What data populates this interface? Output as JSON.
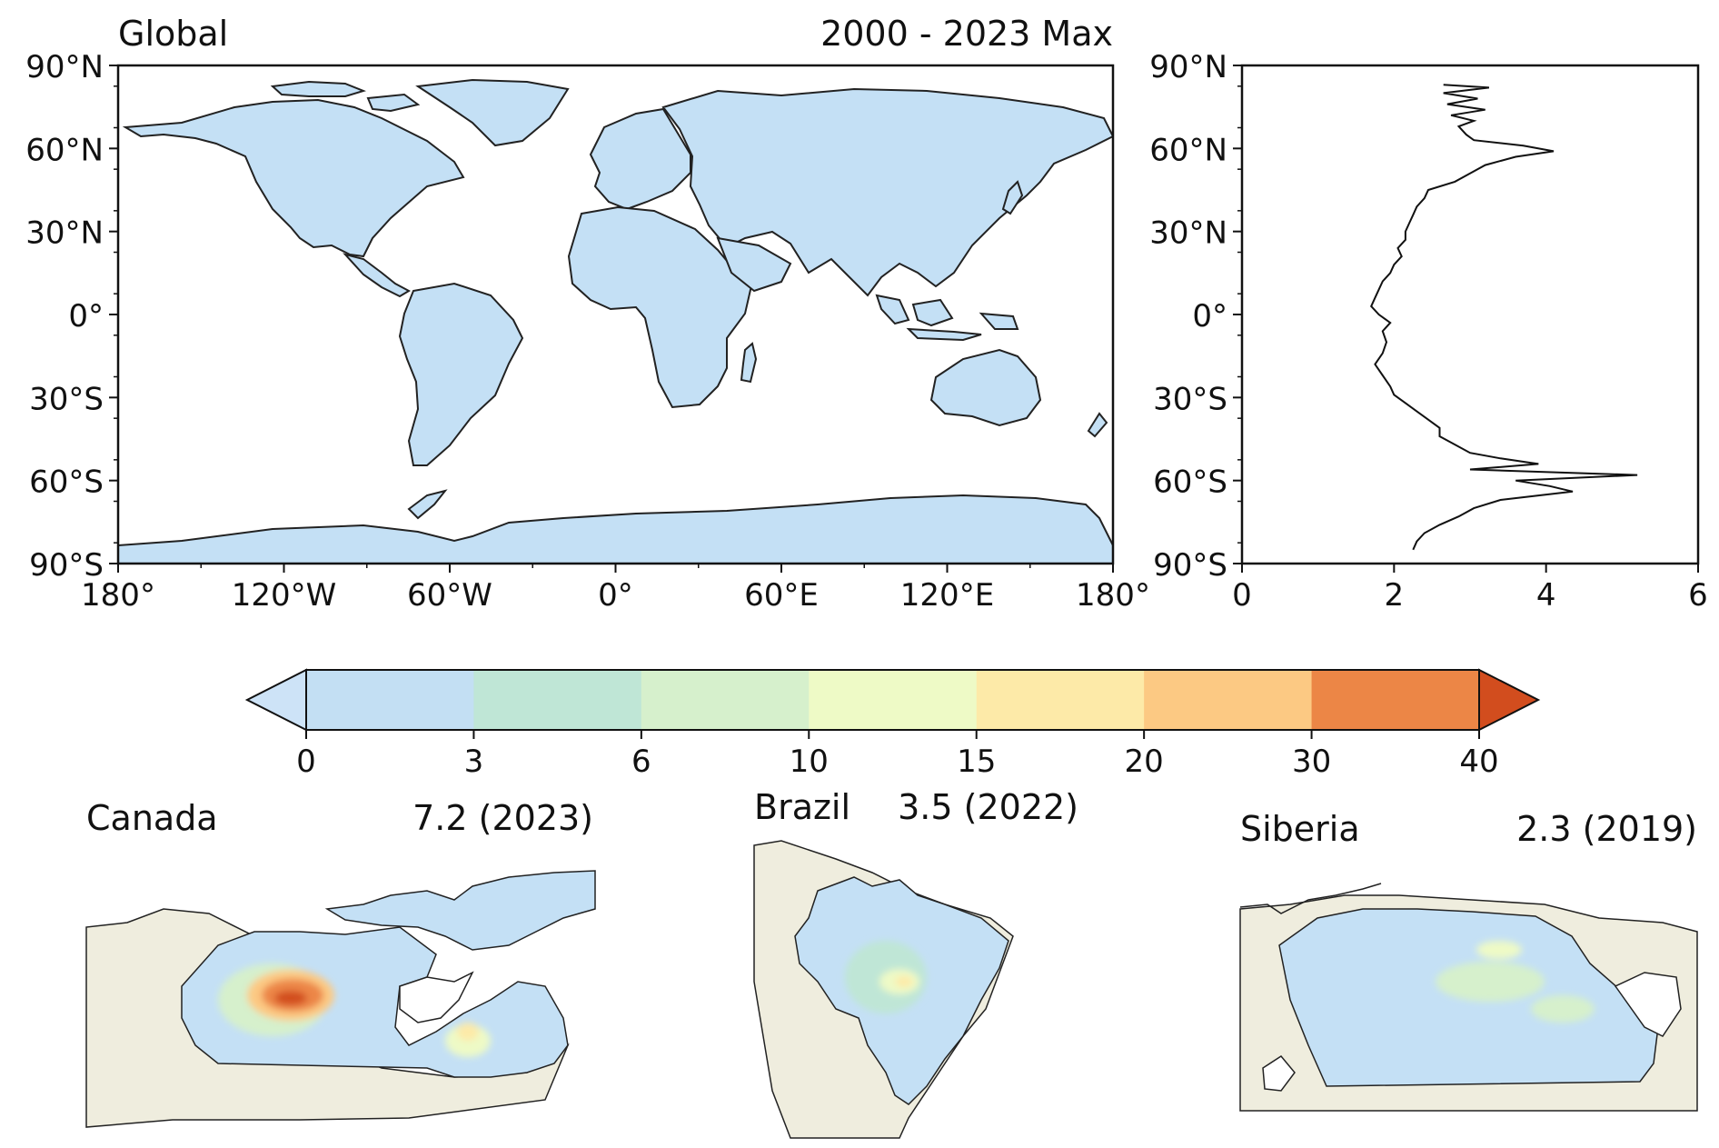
{
  "global_map": {
    "title_left": "Global",
    "title_right": "2000 - 2023 Max",
    "lat_ticks": [
      "90°N",
      "60°N",
      "30°N",
      "0°",
      "30°S",
      "60°S",
      "90°S"
    ],
    "lon_ticks": [
      "180°",
      "120°W",
      "60°W",
      "0°",
      "60°E",
      "120°E",
      "180°"
    ],
    "colors": {
      "ocean": "#ffffff",
      "land_base": "#c4e0f5",
      "coast": "#222222"
    }
  },
  "zonal_profile": {
    "lat_ticks": [
      "90°N",
      "60°N",
      "30°N",
      "0°",
      "30°S",
      "60°S",
      "90°S"
    ],
    "x_ticks": [
      "0",
      "2",
      "4",
      "6"
    ],
    "line_color": "#111111"
  },
  "colorbar": {
    "tick_labels": [
      "0",
      "3",
      "6",
      "10",
      "15",
      "20",
      "30",
      "40"
    ],
    "bin_colors": [
      "#c3dff3",
      "#bfe6d6",
      "#d6f0cc",
      "#eefac6",
      "#fdeaa8",
      "#fcc983",
      "#ec8646"
    ],
    "under_color": "#cde3f7",
    "over_color": "#d24d1e"
  },
  "regions": [
    {
      "name": "Canada",
      "value": "7.2 (2023)"
    },
    {
      "name": "Brazil",
      "value": "3.5 (2022)"
    },
    {
      "name": "Siberia",
      "value": "2.3 (2019)"
    }
  ],
  "region_colors": {
    "outside": "#efedde",
    "inside": "#c4e0f5"
  },
  "chart_data": [
    {
      "type": "line",
      "description_axis": "latitude (y) vs zonal mean (x)",
      "ylim": [
        -90,
        90
      ],
      "xlim": [
        0,
        6
      ],
      "points": [
        [
          -85,
          2.25
        ],
        [
          -82,
          2.3
        ],
        [
          -79,
          2.4
        ],
        [
          -76,
          2.6
        ],
        [
          -73,
          2.85
        ],
        [
          -70,
          3.05
        ],
        [
          -67,
          3.4
        ],
        [
          -64,
          4.35
        ],
        [
          -62,
          4.05
        ],
        [
          -60,
          3.6
        ],
        [
          -58,
          5.2
        ],
        [
          -56,
          3.0
        ],
        [
          -54,
          3.9
        ],
        [
          -52,
          3.4
        ],
        [
          -50,
          3.0
        ],
        [
          -47,
          2.8
        ],
        [
          -44,
          2.6
        ],
        [
          -41,
          2.6
        ],
        [
          -38,
          2.45
        ],
        [
          -35,
          2.3
        ],
        [
          -32,
          2.15
        ],
        [
          -29,
          2.0
        ],
        [
          -26,
          1.95
        ],
        [
          -22,
          1.85
        ],
        [
          -18,
          1.75
        ],
        [
          -14,
          1.85
        ],
        [
          -10,
          1.9
        ],
        [
          -6,
          1.85
        ],
        [
          -3,
          1.95
        ],
        [
          0,
          1.8
        ],
        [
          3,
          1.7
        ],
        [
          6,
          1.75
        ],
        [
          9,
          1.8
        ],
        [
          12,
          1.85
        ],
        [
          15,
          1.95
        ],
        [
          18,
          2.0
        ],
        [
          21,
          2.1
        ],
        [
          24,
          2.05
        ],
        [
          27,
          2.15
        ],
        [
          30,
          2.15
        ],
        [
          33,
          2.2
        ],
        [
          36,
          2.25
        ],
        [
          39,
          2.3
        ],
        [
          42,
          2.4
        ],
        [
          45,
          2.45
        ],
        [
          48,
          2.8
        ],
        [
          51,
          3.0
        ],
        [
          54,
          3.2
        ],
        [
          57,
          3.6
        ],
        [
          59,
          4.1
        ],
        [
          61,
          3.7
        ],
        [
          63,
          3.05
        ],
        [
          65,
          2.95
        ],
        [
          68,
          2.85
        ],
        [
          70,
          3.05
        ],
        [
          72,
          2.75
        ],
        [
          74,
          3.2
        ],
        [
          76,
          2.7
        ],
        [
          78,
          3.1
        ],
        [
          80,
          2.65
        ],
        [
          82,
          3.25
        ],
        [
          83,
          2.65
        ]
      ]
    },
    {
      "type": "colorbar",
      "boundaries": [
        0,
        3,
        6,
        10,
        15,
        20,
        30,
        40
      ],
      "extend": "both"
    }
  ]
}
